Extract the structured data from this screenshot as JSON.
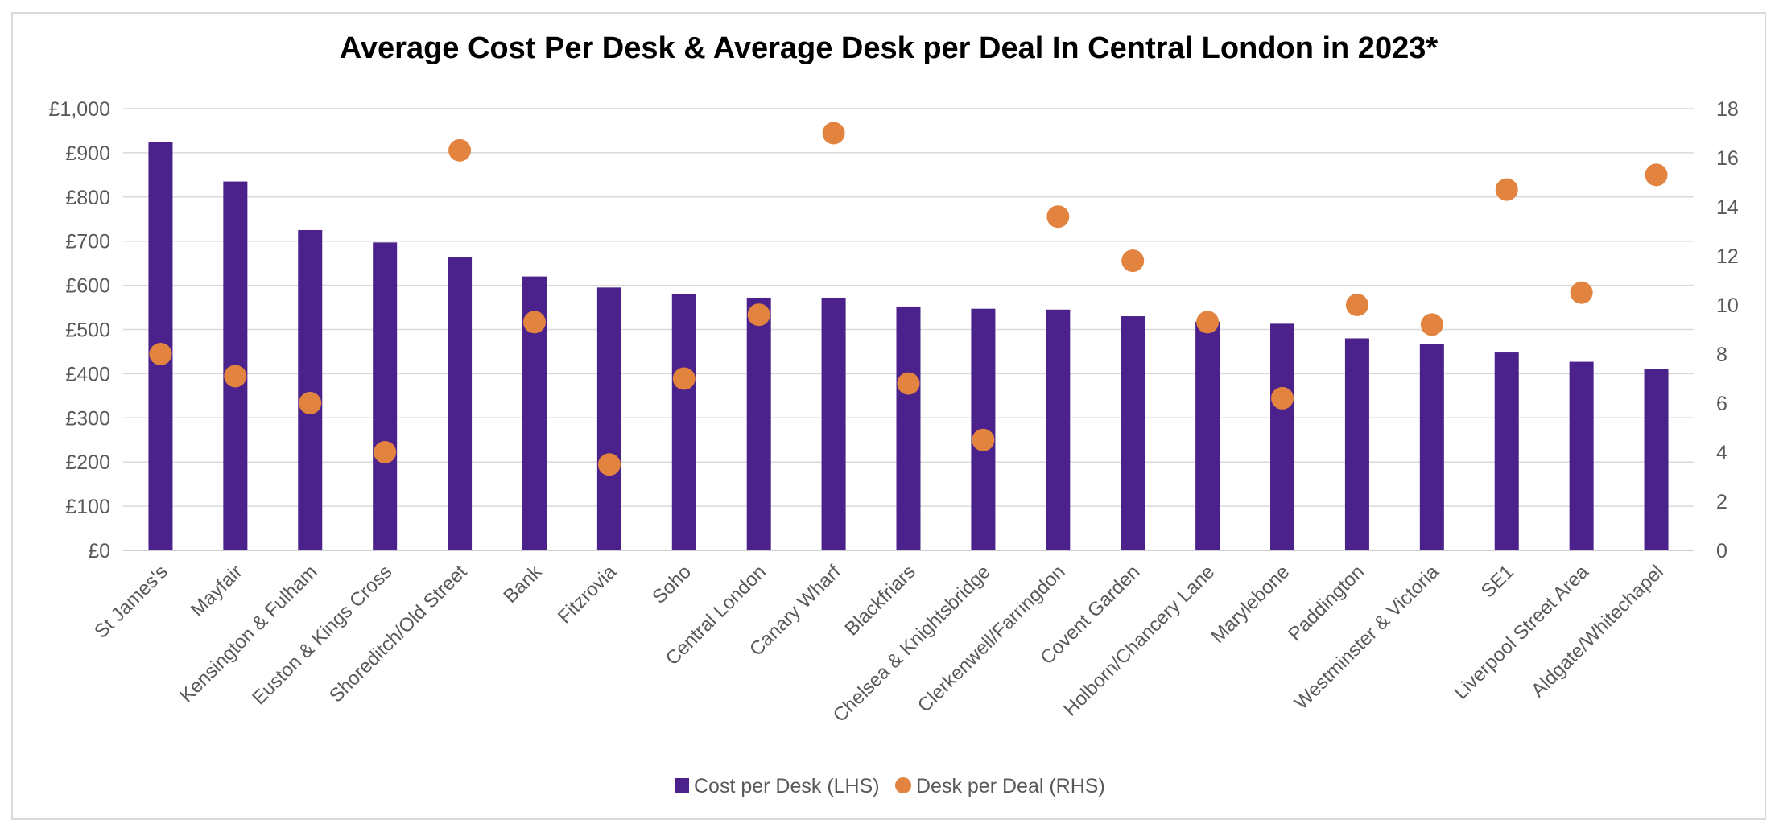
{
  "chart_data": {
    "type": "bar",
    "title": "Average Cost Per Desk & Average Desk per Deal In Central London in 2023*",
    "xlabel": "",
    "ylabel": "",
    "y2label": "",
    "categories": [
      "St James's",
      "Mayfair",
      "Kensington & Fulham",
      "Euston & Kings Cross",
      "Shoreditch/Old Street",
      "Bank",
      "Fitzrovia",
      "Soho",
      "Central London",
      "Canary Wharf",
      "Blackfriars",
      "Chelsea & Knightsbridge",
      "Clerkenwell/Farringdon",
      "Covent Garden",
      "Holborn/Chancery Lane",
      "Marylebone",
      "Paddington",
      "Westminster & Victoria",
      "SE1",
      "Liverpool Street Area",
      "Aldgate/Whitechapel"
    ],
    "series": [
      {
        "name": "Cost per Desk (LHS)",
        "type": "bar",
        "axis": "left",
        "color": "#4b218b",
        "values": [
          925,
          835,
          725,
          697,
          663,
          620,
          595,
          580,
          572,
          572,
          552,
          547,
          545,
          530,
          518,
          513,
          480,
          468,
          448,
          427,
          410
        ]
      },
      {
        "name": "Desk per Deal (RHS)",
        "type": "scatter",
        "axis": "right",
        "color": "#e2843f",
        "values": [
          8.0,
          7.1,
          6.0,
          4.0,
          16.3,
          9.3,
          3.5,
          7.0,
          9.6,
          17.0,
          6.8,
          4.5,
          13.6,
          11.8,
          9.3,
          6.2,
          10.0,
          9.2,
          14.7,
          10.5,
          15.3
        ]
      }
    ],
    "ylim": [
      0,
      1000
    ],
    "yticks": [
      0,
      100,
      200,
      300,
      400,
      500,
      600,
      700,
      800,
      900,
      1000
    ],
    "ytick_labels": [
      "£0",
      "£100",
      "£200",
      "£300",
      "£400",
      "£500",
      "£600",
      "£700",
      "£800",
      "£900",
      "£1,000"
    ],
    "y2lim": [
      0,
      18
    ],
    "y2ticks": [
      0,
      2,
      4,
      6,
      8,
      10,
      12,
      14,
      16,
      18
    ],
    "y2tick_labels": [
      "0",
      "2",
      "4",
      "6",
      "8",
      "10",
      "12",
      "14",
      "16",
      "18"
    ],
    "grid": true,
    "legend_position": "bottom"
  }
}
